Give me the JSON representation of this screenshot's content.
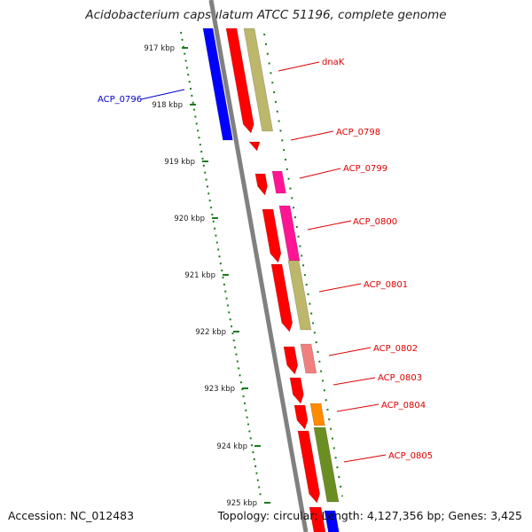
{
  "title": "Acidobacterium capsulatum ATCC 51196, complete genome",
  "footer": {
    "accession": "Accession: NC_012483",
    "stats": "Topology: circular; Length: 4,127,356 bp; Genes: 3,425"
  },
  "colors": {
    "cds_red": "#ff0000",
    "reverse_blue": "#0000ff",
    "tan": "#bdb76b",
    "magenta": "#ff1493",
    "salmon": "#f08080",
    "orange": "#ff8c00",
    "olive": "#6b8e23",
    "tick_green": "#1e7b1e",
    "backbone_gray": "#808080"
  },
  "kbp_ticks": [
    "917 kbp",
    "918 kbp",
    "919 kbp",
    "920 kbp",
    "921 kbp",
    "922 kbp",
    "923 kbp",
    "924 kbp",
    "925 kbp"
  ],
  "gene_labels": [
    {
      "text": "ACP_0796",
      "color": "#0000cc"
    },
    {
      "text": "dnaK",
      "color": "#dd0000"
    },
    {
      "text": "ACP_0798",
      "color": "#dd0000"
    },
    {
      "text": "ACP_0799",
      "color": "#dd0000"
    },
    {
      "text": "ACP_0800",
      "color": "#dd0000"
    },
    {
      "text": "ACP_0801",
      "color": "#dd0000"
    },
    {
      "text": "ACP_0802",
      "color": "#dd0000"
    },
    {
      "text": "ACP_0803",
      "color": "#dd0000"
    },
    {
      "text": "ACP_0804",
      "color": "#dd0000"
    },
    {
      "text": "ACP_0805",
      "color": "#dd0000"
    }
  ]
}
